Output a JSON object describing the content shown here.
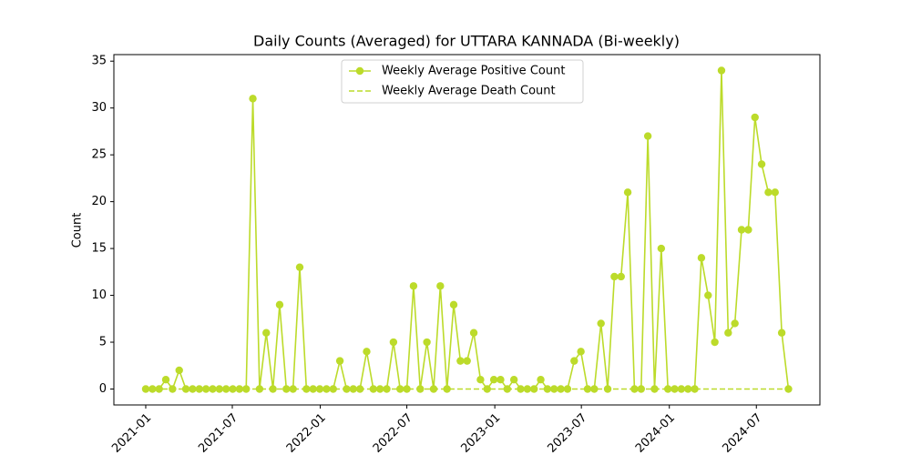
{
  "chart_data": {
    "type": "line",
    "title": "Daily Counts (Averaged) for UTTARA KANNADA (Bi-weekly)",
    "y_label": "Count",
    "categories": [
      null,
      null,
      null,
      null,
      null,
      null,
      null,
      null,
      null,
      null,
      null,
      null,
      null,
      null,
      null,
      null,
      null,
      null,
      null,
      null,
      null,
      null,
      null,
      null,
      null,
      null,
      null,
      null,
      null,
      null,
      null,
      null,
      null,
      null,
      null,
      null,
      null,
      null,
      null,
      null,
      null,
      null,
      null,
      null,
      null,
      null,
      null,
      null,
      null,
      null,
      null,
      null,
      null,
      null,
      null,
      null,
      null,
      null,
      null,
      null,
      null,
      null,
      null,
      null,
      null,
      null,
      null,
      null,
      null,
      null,
      null,
      null,
      null,
      null,
      null,
      null,
      null,
      null,
      null,
      null,
      null,
      null,
      null,
      null,
      null,
      null,
      null,
      null,
      null,
      null,
      null,
      null,
      null,
      null,
      null,
      null,
      null
    ],
    "series": [
      {
        "name": "Weekly Average Positive Count",
        "color": "#bcdb2a",
        "marker": true,
        "dashed": false,
        "values": [
          0,
          0,
          0,
          1,
          0,
          2,
          0,
          0,
          0,
          0,
          0,
          0,
          0,
          0,
          0,
          0,
          31,
          0,
          6,
          0,
          9,
          0,
          0,
          13,
          0,
          0,
          0,
          0,
          0,
          3,
          0,
          0,
          0,
          4,
          0,
          0,
          0,
          5,
          0,
          0,
          11,
          0,
          5,
          0,
          11,
          0,
          9,
          3,
          3,
          6,
          1,
          0,
          1,
          1,
          0,
          1,
          0,
          0,
          0,
          1,
          0,
          0,
          0,
          0,
          3,
          4,
          0,
          0,
          7,
          0,
          12,
          12,
          21,
          0,
          0,
          27,
          0,
          15,
          0,
          0,
          0,
          0,
          0,
          14,
          10,
          5,
          34,
          6,
          7,
          17,
          17,
          29,
          24,
          21,
          21,
          6,
          0
        ]
      },
      {
        "name": "Weekly Average Death Count",
        "color": "#bcdb2a",
        "marker": false,
        "dashed": true,
        "values": [
          0,
          0,
          0,
          0,
          0,
          0,
          0,
          0,
          0,
          0,
          0,
          0,
          0,
          0,
          0,
          0,
          0,
          0,
          0,
          0,
          0,
          0,
          0,
          0,
          0,
          0,
          0,
          0,
          0,
          0,
          0,
          0,
          0,
          0,
          0,
          0,
          0,
          0,
          0,
          0,
          0,
          0,
          0,
          0,
          0,
          0,
          0,
          0,
          0,
          0,
          0,
          0,
          0,
          0,
          0,
          0,
          0,
          0,
          0,
          0,
          0,
          0,
          0,
          0,
          0,
          0,
          0,
          0,
          0,
          0,
          0,
          0,
          0,
          0,
          0,
          0,
          0,
          0,
          0,
          0,
          0,
          0,
          0,
          0,
          0,
          0,
          0,
          0,
          0,
          0,
          0,
          0,
          0,
          0,
          0,
          0,
          0
        ]
      }
    ],
    "xlim": [
      -4.76,
      100.7
    ],
    "xticks": [
      {
        "value": 0,
        "label": "2021-01"
      },
      {
        "value": 12.93,
        "label": "2021-07"
      },
      {
        "value": 26.07,
        "label": "2022-01"
      },
      {
        "value": 39.0,
        "label": "2022-07"
      },
      {
        "value": 52.14,
        "label": "2023-01"
      },
      {
        "value": 65.07,
        "label": "2023-07"
      },
      {
        "value": 78.21,
        "label": "2024-01"
      },
      {
        "value": 91.21,
        "label": "2024-07"
      }
    ],
    "ylim": [
      -1.7,
      35.7
    ],
    "yticks": [
      0,
      5,
      10,
      15,
      20,
      25,
      30,
      35
    ],
    "grid": false,
    "legend": "upper center"
  }
}
